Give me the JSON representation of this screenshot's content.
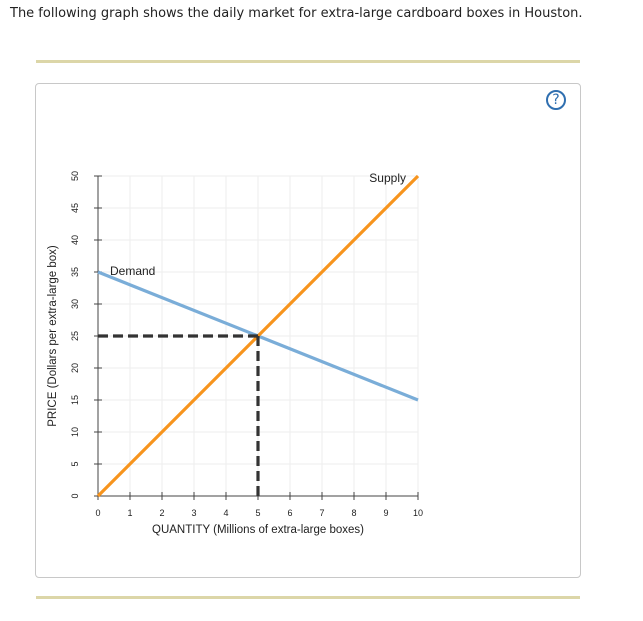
{
  "question": {
    "text": "The following graph shows the daily market for extra-large cardboard boxes in Houston."
  },
  "help": {
    "label": "?"
  },
  "colors": {
    "demand": "#7aadd8",
    "supply": "#f7941d",
    "equilibrium": "#333333"
  },
  "chart_data": {
    "type": "line",
    "xlabel": "QUANTITY (Millions of extra-large boxes)",
    "ylabel": "PRICE (Dollars per extra-large box)",
    "xlim": [
      0,
      10
    ],
    "ylim": [
      0,
      50
    ],
    "xticks": [
      0,
      1,
      2,
      3,
      4,
      5,
      6,
      7,
      8,
      9,
      10
    ],
    "yticks": [
      0,
      5,
      10,
      15,
      20,
      25,
      30,
      35,
      40,
      45,
      50
    ],
    "grid": true,
    "series": [
      {
        "name": "Demand",
        "x": [
          0,
          10
        ],
        "y": [
          35,
          15
        ]
      },
      {
        "name": "Supply",
        "x": [
          0,
          10
        ],
        "y": [
          0,
          50
        ]
      }
    ],
    "equilibrium": {
      "x": 5,
      "y": 25
    }
  }
}
